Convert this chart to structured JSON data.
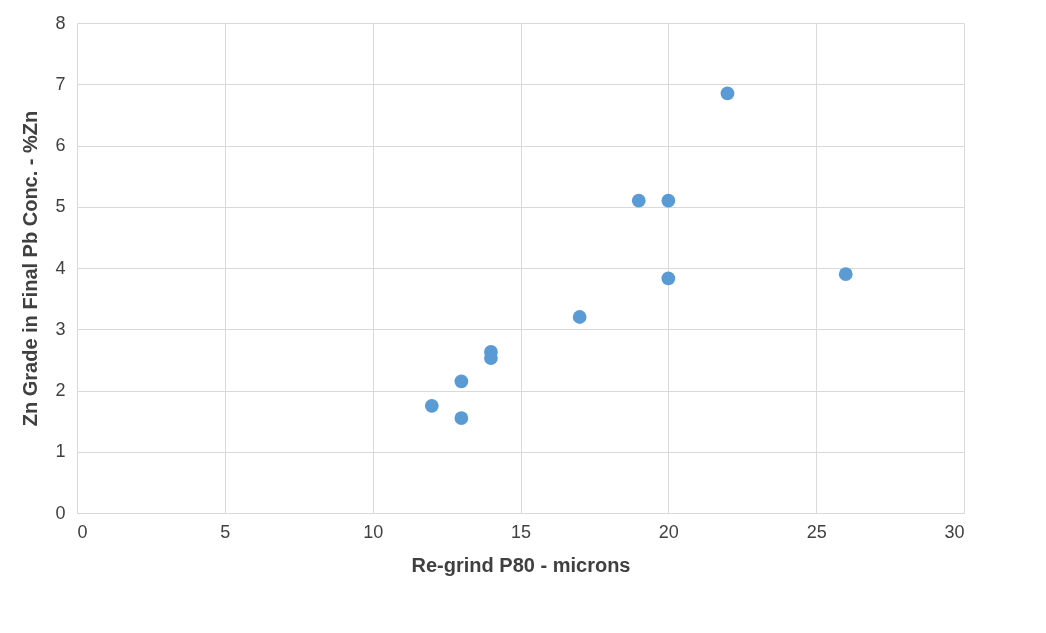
{
  "chart_data": {
    "type": "scatter",
    "xlabel": "Re-grind P80 - microns",
    "ylabel": "Zn Grade in Final Pb Conc. - %Zn",
    "x": [
      12,
      13,
      13,
      14,
      14,
      17,
      19,
      20,
      20,
      22,
      26
    ],
    "series": [
      {
        "color": "#5b9bd5",
        "values": [
          1.75,
          2.15,
          1.55,
          2.63,
          2.53,
          3.2,
          5.1,
          5.1,
          3.83,
          6.85,
          3.9
        ]
      }
    ],
    "xlim": [
      0,
      30
    ],
    "xticks": [
      0,
      5,
      10,
      15,
      20,
      25,
      30
    ],
    "ylim": [
      0,
      8
    ],
    "yticks": [
      0,
      1,
      2,
      3,
      4,
      5,
      6,
      7,
      8
    ],
    "grid": true,
    "marker": "circle"
  }
}
